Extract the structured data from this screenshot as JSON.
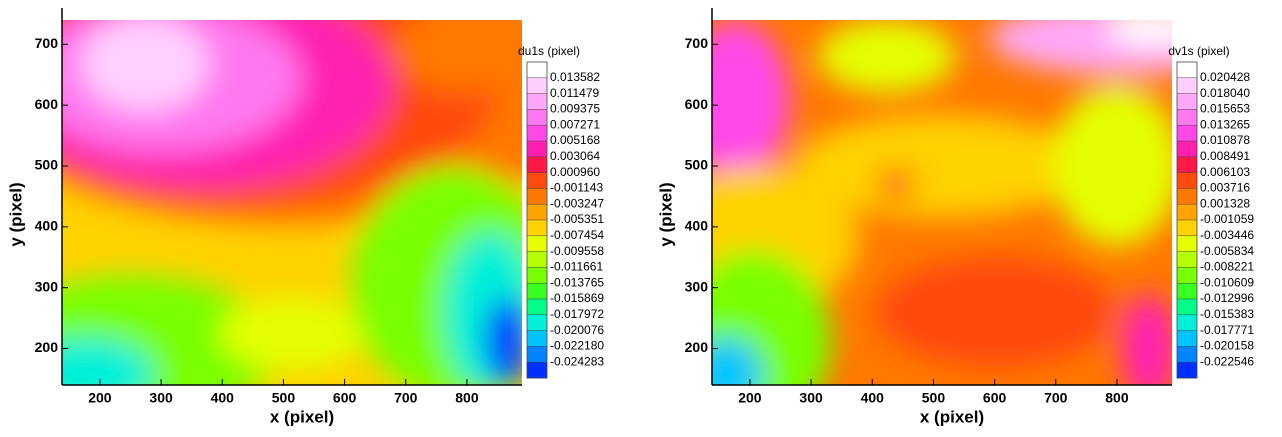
{
  "chart_data": [
    {
      "type": "contour",
      "xlabel": "x (pixel)",
      "ylabel": "y (pixel)",
      "xlim": [
        138,
        890
      ],
      "ylim": [
        140,
        740
      ],
      "xticks": [
        200,
        300,
        400,
        500,
        600,
        700,
        800
      ],
      "yticks": [
        200,
        300,
        400,
        500,
        600,
        700
      ],
      "colorbar": {
        "title": "du1s (pixel)",
        "levels": [
          0.013582,
          0.011479,
          0.009375,
          0.007271,
          0.005168,
          0.003064,
          {
            "value": 0.00096,
            "label": "0.000960"
          },
          -0.001143,
          -0.003247,
          -0.005351,
          -0.007454,
          -0.009558,
          -0.011661,
          -0.013765,
          -0.015869,
          -0.017972,
          -0.020076,
          {
            "value": -0.02218,
            "label": "-0.022180"
          },
          -0.024283
        ],
        "colors": [
          "#ffffff",
          "#ffd0ff",
          "#ffa8f8",
          "#ff78f0",
          "#ff48e8",
          "#ff20b0",
          "#ff1848",
          "#ff4a10",
          "#ff7800",
          "#ffa400",
          "#ffd200",
          "#e4ff00",
          "#b4ff00",
          "#78ff00",
          "#38ff20",
          "#00ff88",
          "#00f0d8",
          "#00c4ff",
          "#0084ff",
          "#0030ff"
        ]
      }
    },
    {
      "type": "contour",
      "xlabel": "x (pixel)",
      "ylabel": "y (pixel)",
      "xlim": [
        138,
        890
      ],
      "ylim": [
        140,
        740
      ],
      "xticks": [
        200,
        300,
        400,
        500,
        600,
        700,
        800
      ],
      "yticks": [
        200,
        300,
        400,
        500,
        600,
        700
      ],
      "colorbar": {
        "title": "dv1s (pixel)",
        "levels": [
          0.020428,
          {
            "value": 0.01804,
            "label": "0.018040"
          },
          0.015653,
          0.013265,
          0.010878,
          0.008491,
          0.006103,
          0.003716,
          0.001328,
          -0.001059,
          -0.003446,
          -0.005834,
          -0.008221,
          -0.010609,
          -0.012996,
          -0.015383,
          -0.017771,
          -0.020158,
          -0.022546
        ],
        "colors": [
          "#ffffff",
          "#ffd0ff",
          "#ffa8f8",
          "#ff78f0",
          "#ff48e8",
          "#ff20b0",
          "#ff1848",
          "#ff4a10",
          "#ff7800",
          "#ffa400",
          "#ffd200",
          "#e4ff00",
          "#b4ff00",
          "#78ff00",
          "#38ff20",
          "#00ff88",
          "#00f0d8",
          "#00c4ff",
          "#0084ff",
          "#0030ff"
        ]
      }
    }
  ]
}
